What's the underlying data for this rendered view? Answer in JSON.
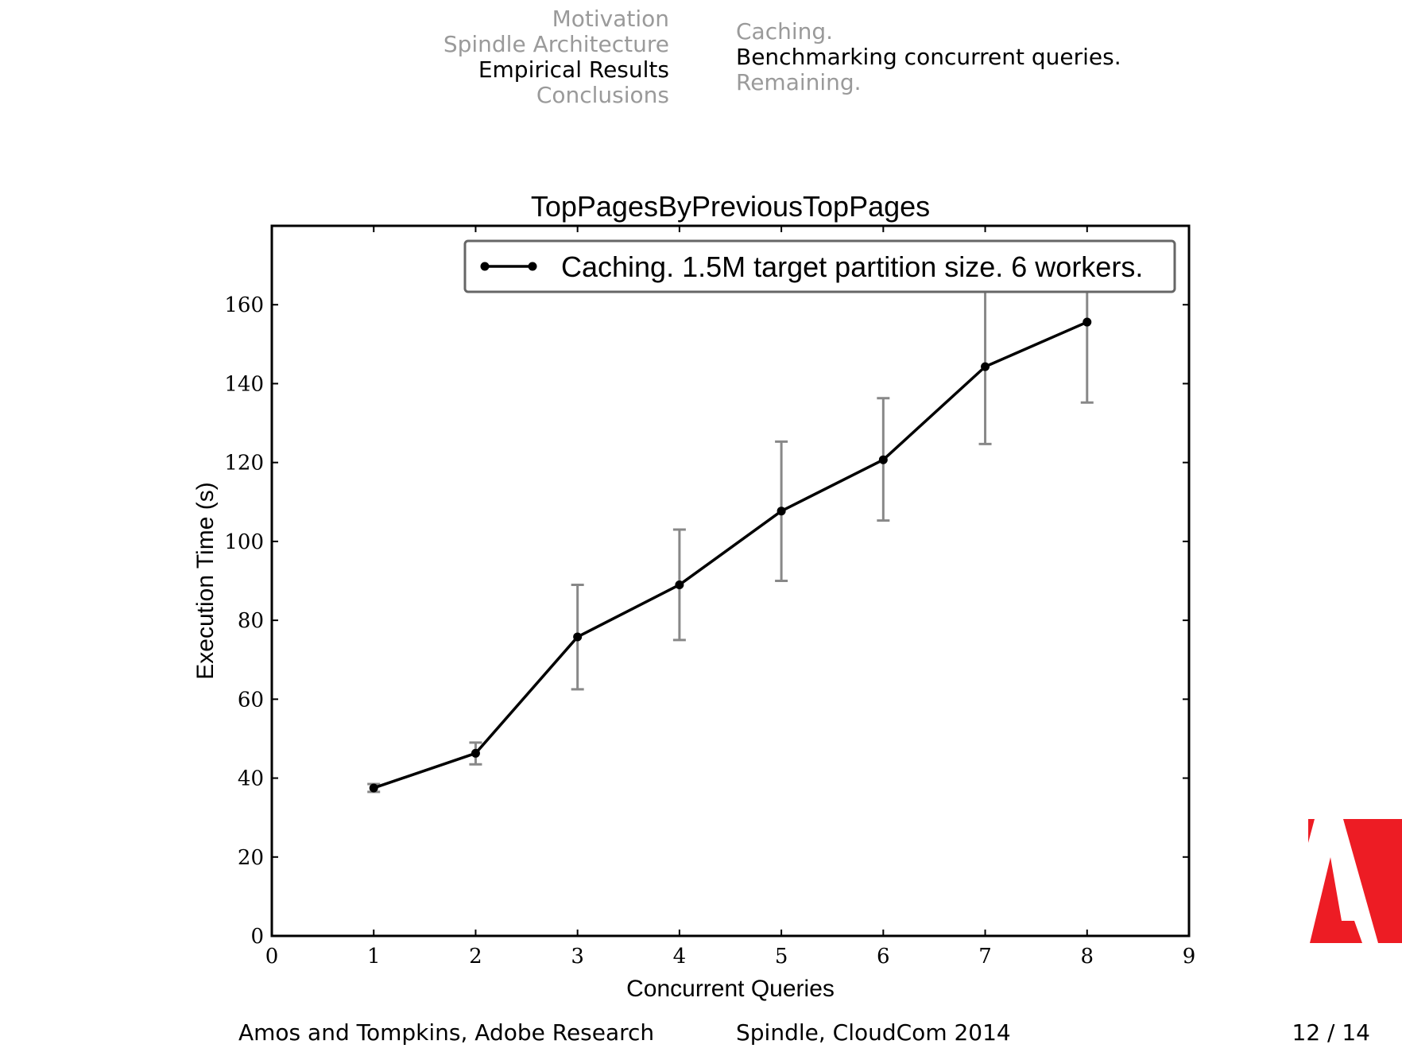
{
  "nav": {
    "sections": [
      {
        "label": "Motivation",
        "active": false
      },
      {
        "label": "Spindle Architecture",
        "active": false
      },
      {
        "label": "Empirical Results",
        "active": true
      },
      {
        "label": "Conclusions",
        "active": false
      }
    ],
    "subsections": [
      {
        "label": "Caching.",
        "active": false
      },
      {
        "label": "Benchmarking concurrent queries.",
        "active": true
      },
      {
        "label": "Remaining.",
        "active": false
      }
    ]
  },
  "chart_data": {
    "type": "line",
    "title": "TopPagesByPreviousTopPages",
    "xlabel": "Concurrent Queries",
    "ylabel": "Execution Time (s)",
    "xlim": [
      0,
      9
    ],
    "ylim": [
      0,
      180
    ],
    "xticks": [
      0,
      1,
      2,
      3,
      4,
      5,
      6,
      7,
      8,
      9
    ],
    "yticks": [
      0,
      20,
      40,
      60,
      80,
      100,
      120,
      140,
      160
    ],
    "grid": false,
    "legend_position": "top-right",
    "series": [
      {
        "name": "Caching. 1.5M target partition size. 6 workers.",
        "color": "#000000",
        "error_color": "#888888",
        "x": [
          1,
          2,
          3,
          4,
          5,
          6,
          7,
          8
        ],
        "y": [
          37.5,
          46.3,
          75.8,
          89.0,
          107.7,
          120.7,
          144.3,
          155.6
        ],
        "err_low": [
          36.5,
          43.5,
          62.5,
          75.0,
          90.0,
          105.3,
          124.7,
          135.2
        ],
        "err_high": [
          38.5,
          49.0,
          89.0,
          103.0,
          125.3,
          136.3,
          163.8,
          176.0
        ]
      }
    ]
  },
  "footer": {
    "left": "Amos and Tompkins, Adobe Research",
    "center": "Spindle, CloudCom 2014",
    "right": "12 / 14"
  },
  "logo": {
    "icon": "adobe-logo-icon",
    "color": "#ed1c24"
  }
}
